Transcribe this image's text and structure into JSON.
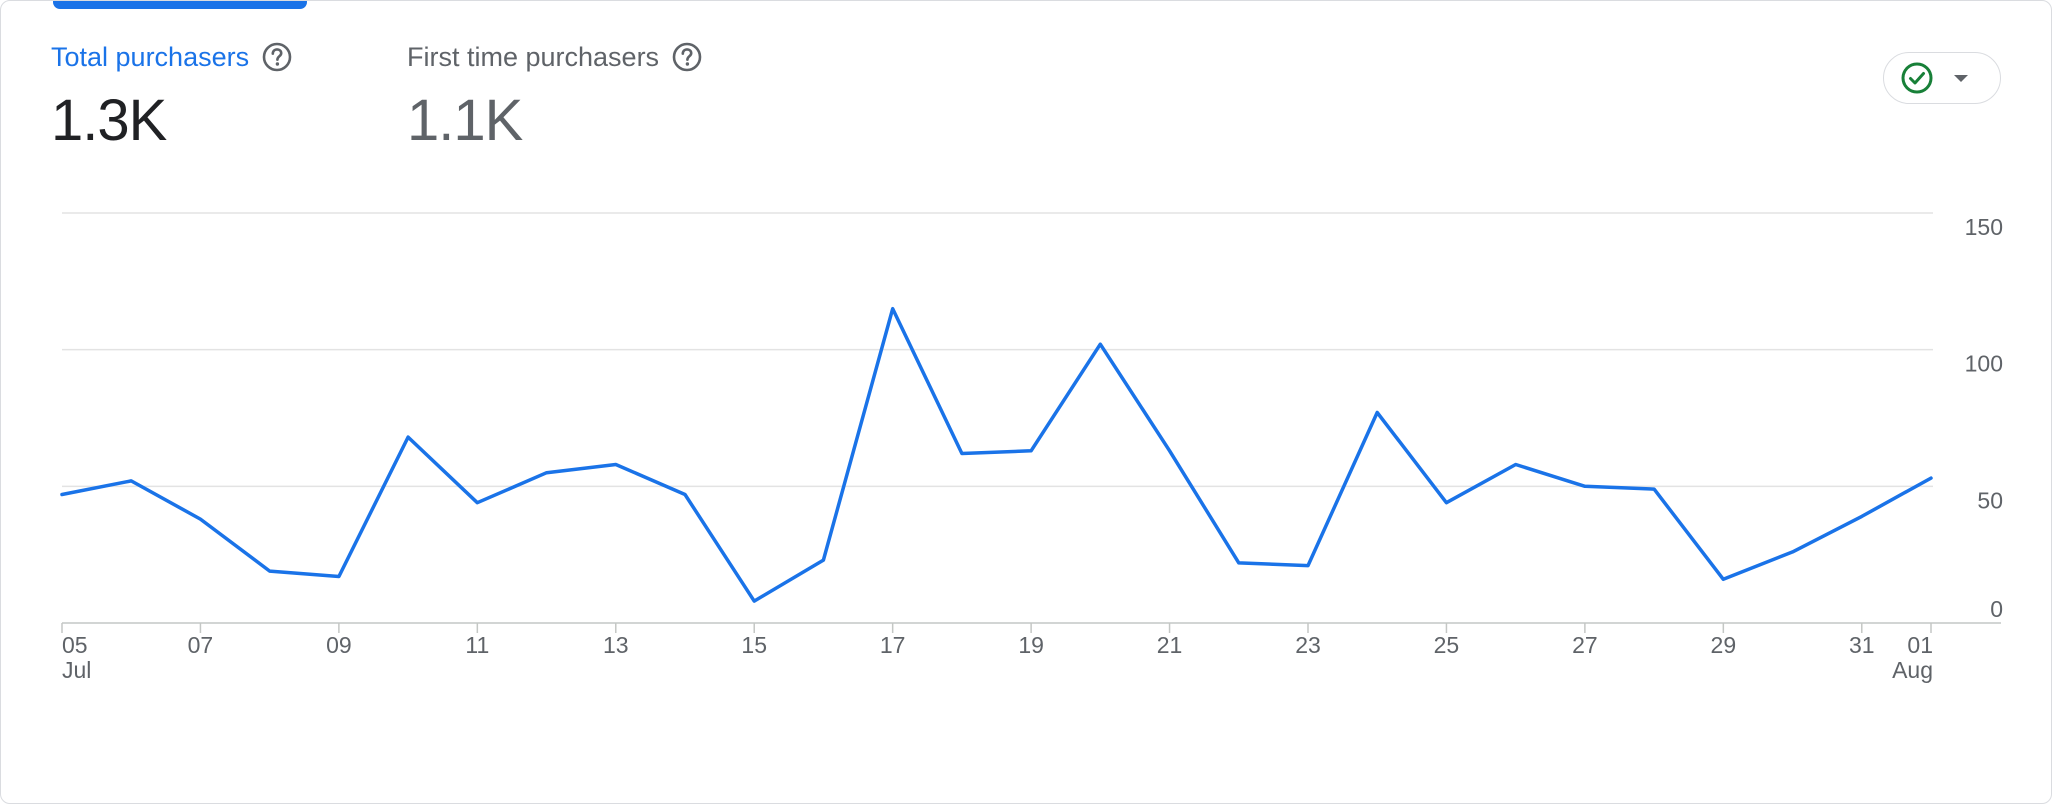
{
  "metrics": {
    "total": {
      "label": "Total purchasers",
      "value": "1.3K",
      "help_icon": "help-circle-icon"
    },
    "first_time": {
      "label": "First time purchasers",
      "value": "1.1K",
      "help_icon": "help-circle-icon"
    }
  },
  "status_button": {
    "icon": "check-circle-icon",
    "dropdown_icon": "caret-down-icon"
  },
  "colors": {
    "accent": "#1a73e8",
    "line": "#1a73e8",
    "check": "#188038",
    "grid": "#dadce0"
  },
  "chart_data": {
    "type": "line",
    "title": "",
    "xlabel": "",
    "ylabel": "",
    "y_axis_position": "right",
    "ylim": [
      0,
      150
    ],
    "y_ticks": [
      0,
      50,
      100,
      150
    ],
    "grid": true,
    "x_tick_labels": [
      {
        "day": "05",
        "sub": "Jul"
      },
      {
        "day": "07"
      },
      {
        "day": "09"
      },
      {
        "day": "11"
      },
      {
        "day": "13"
      },
      {
        "day": "15"
      },
      {
        "day": "17"
      },
      {
        "day": "19"
      },
      {
        "day": "21"
      },
      {
        "day": "23"
      },
      {
        "day": "25"
      },
      {
        "day": "27"
      },
      {
        "day": "29"
      },
      {
        "day": "31"
      },
      {
        "day": "01",
        "sub": "Aug"
      }
    ],
    "x": [
      "Jul 05",
      "Jul 06",
      "Jul 07",
      "Jul 08",
      "Jul 09",
      "Jul 10",
      "Jul 11",
      "Jul 12",
      "Jul 13",
      "Jul 14",
      "Jul 15",
      "Jul 16",
      "Jul 17",
      "Jul 18",
      "Jul 19",
      "Jul 20",
      "Jul 21",
      "Jul 22",
      "Jul 23",
      "Jul 24",
      "Jul 25",
      "Jul 26",
      "Jul 27",
      "Jul 28",
      "Jul 29",
      "Jul 30",
      "Jul 31",
      "Aug 01"
    ],
    "series": [
      {
        "values": [
          47,
          52,
          38,
          19,
          17,
          68,
          44,
          55,
          58,
          47,
          8,
          23,
          115,
          62,
          63,
          102,
          63,
          22,
          21,
          77,
          44,
          58,
          50,
          49,
          16,
          26,
          39,
          53
        ]
      }
    ]
  }
}
